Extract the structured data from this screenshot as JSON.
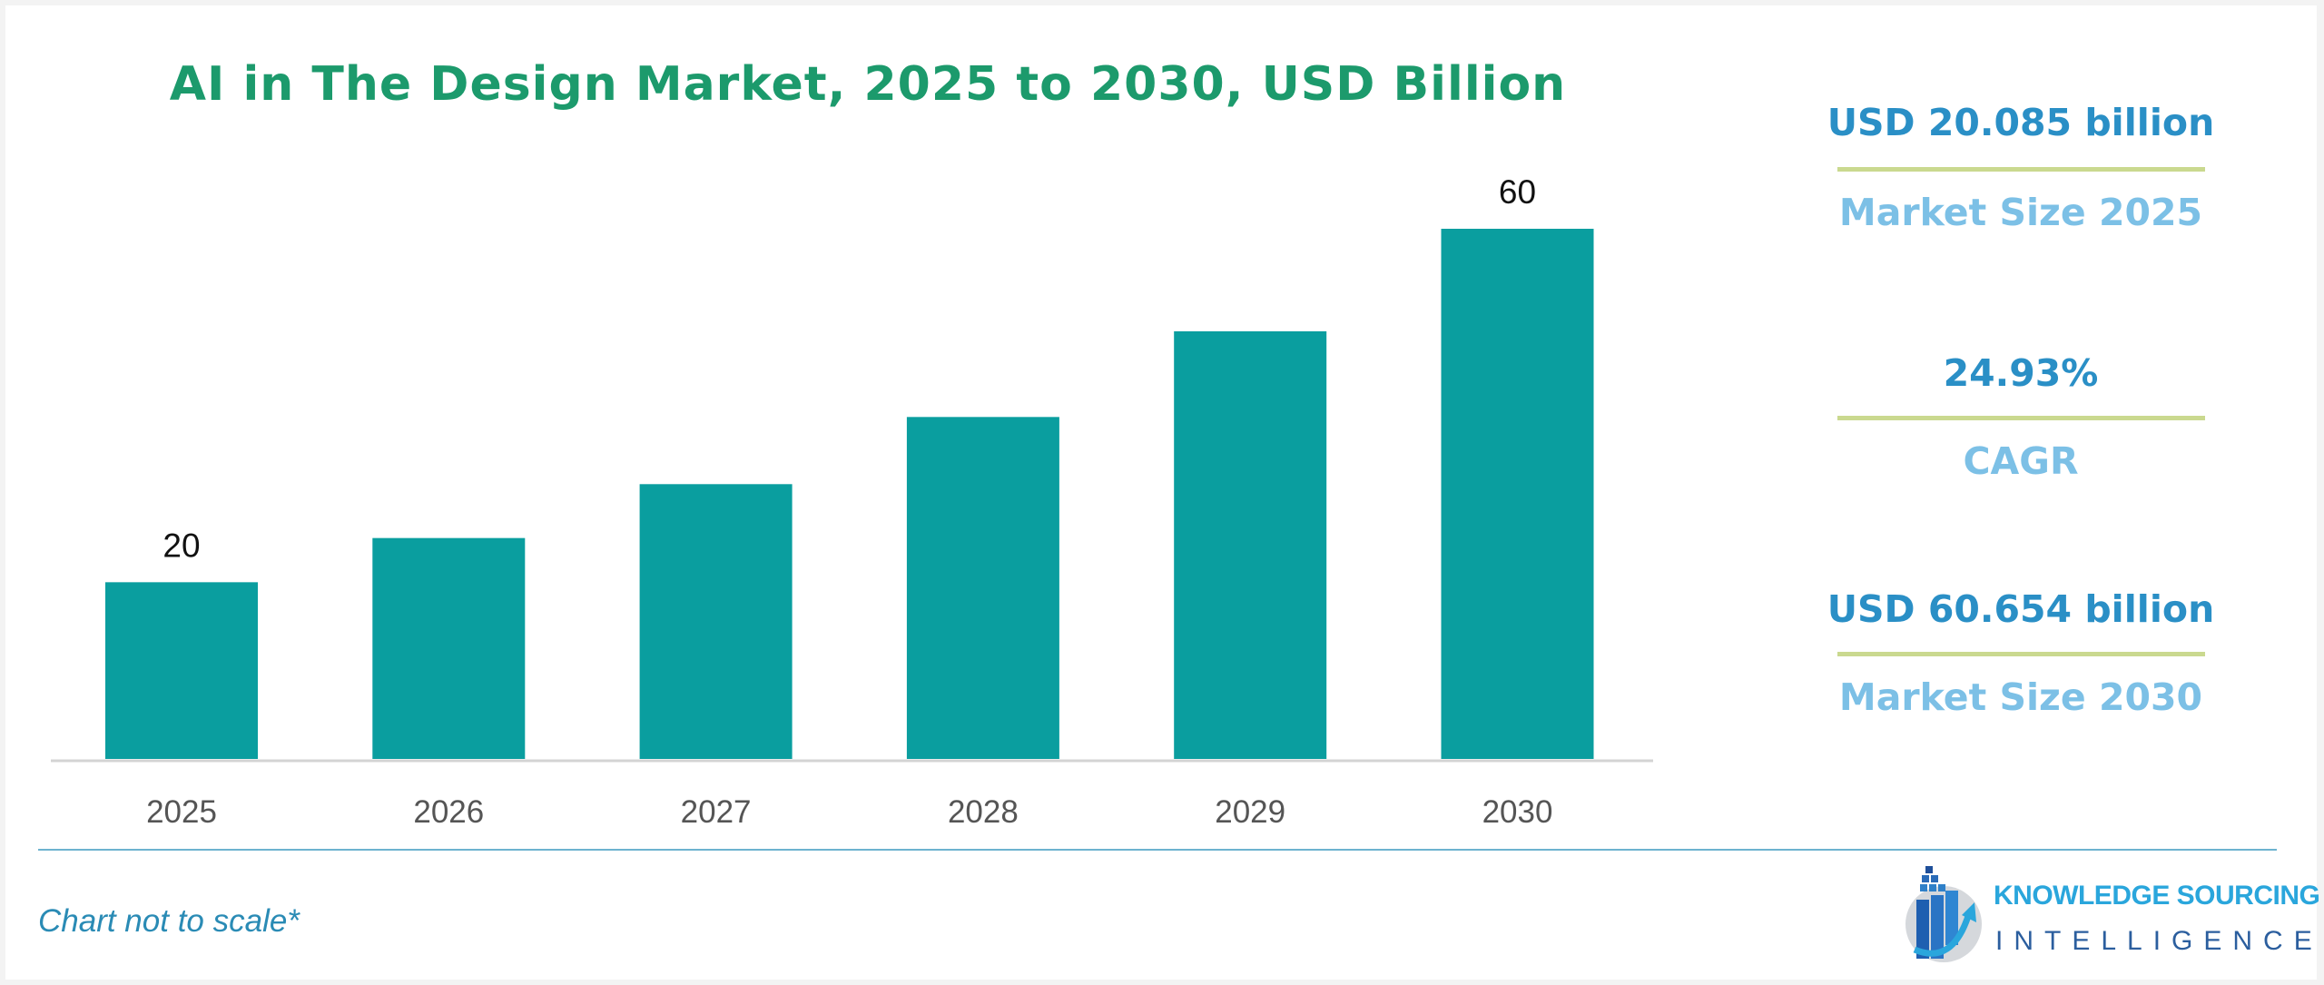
{
  "chart_data": {
    "type": "bar",
    "title": "AI in The Design Market, 2025 to 2030, USD Billion",
    "categories": [
      "2025",
      "2026",
      "2027",
      "2028",
      "2029",
      "2030"
    ],
    "values": [
      20,
      25,
      31.1,
      38.7,
      48.4,
      60
    ],
    "data_labels": {
      "2025": "20",
      "2030": "60"
    },
    "ylim": [
      0,
      60
    ],
    "grid": false,
    "bar_color": "#0a9e9f",
    "note": "Chart not to scale*"
  },
  "stats": [
    {
      "value": "USD 20.085 billion",
      "label": "Market Size 2025"
    },
    {
      "value": "24.93%",
      "label": "CAGR"
    },
    {
      "value": "USD 60.654 billion",
      "label": "Market Size 2030"
    }
  ],
  "logo": {
    "line1": "KNOWLEDGE SOURCING",
    "line2": "INTELLIGENCE"
  }
}
